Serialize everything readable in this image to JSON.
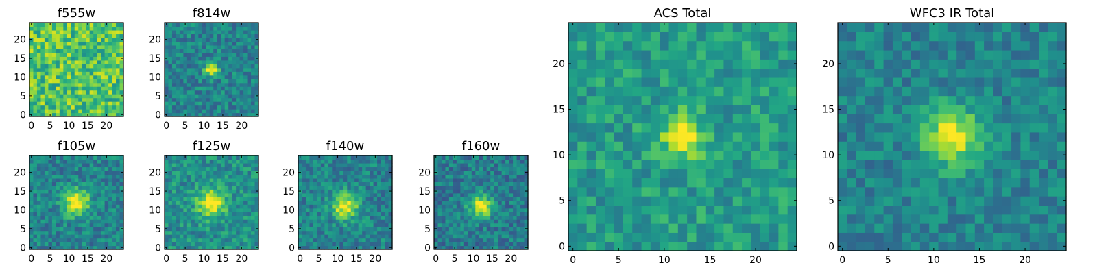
{
  "figure": {
    "colormap": "viridis"
  },
  "chart_data": [
    {
      "type": "heatmap",
      "id": "f555w",
      "title": "f555w",
      "grid_size": 25,
      "xlim": [
        -0.5,
        24.5
      ],
      "ylim": [
        -0.5,
        24.5
      ],
      "xticks": [
        0,
        5,
        10,
        15,
        20
      ],
      "yticks": [
        0,
        5,
        10,
        15,
        20
      ],
      "source_peak": [
        12,
        12
      ],
      "peak_level": 0.0,
      "source_sigma": 2.0,
      "background_level": 0.72,
      "noise": 0.22,
      "seed": 11
    },
    {
      "type": "heatmap",
      "id": "f814w",
      "title": "f814w",
      "grid_size": 25,
      "xlim": [
        -0.5,
        24.5
      ],
      "ylim": [
        -0.5,
        24.5
      ],
      "xticks": [
        0,
        5,
        10,
        15,
        20
      ],
      "yticks": [
        0,
        5,
        10,
        15,
        20
      ],
      "source_peak": [
        12,
        12
      ],
      "peak_level": 0.6,
      "source_sigma": 1.3,
      "background_level": 0.45,
      "noise": 0.16,
      "seed": 23
    },
    {
      "type": "heatmap",
      "id": "f105w",
      "title": "f105w",
      "grid_size": 25,
      "xlim": [
        -0.5,
        24.5
      ],
      "ylim": [
        -0.5,
        24.5
      ],
      "xticks": [
        0,
        5,
        10,
        15,
        20
      ],
      "yticks": [
        0,
        5,
        10,
        15,
        20
      ],
      "source_peak": [
        12,
        12
      ],
      "peak_level": 0.6,
      "source_sigma": 2.4,
      "background_level": 0.45,
      "noise": 0.16,
      "seed": 37
    },
    {
      "type": "heatmap",
      "id": "f125w",
      "title": "f125w",
      "grid_size": 25,
      "xlim": [
        -0.5,
        24.5
      ],
      "ylim": [
        -0.5,
        24.5
      ],
      "xticks": [
        0,
        5,
        10,
        15,
        20
      ],
      "yticks": [
        0,
        5,
        10,
        15,
        20
      ],
      "source_peak": [
        12,
        12
      ],
      "peak_level": 0.55,
      "source_sigma": 2.6,
      "background_level": 0.5,
      "noise": 0.16,
      "seed": 41
    },
    {
      "type": "heatmap",
      "id": "f140w",
      "title": "f140w",
      "grid_size": 25,
      "xlim": [
        -0.5,
        24.5
      ],
      "ylim": [
        -0.5,
        24.5
      ],
      "xticks": [
        0,
        5,
        10,
        15,
        20
      ],
      "yticks": [
        0,
        5,
        10,
        15,
        20
      ],
      "source_peak": [
        12,
        11
      ],
      "peak_level": 0.55,
      "source_sigma": 2.4,
      "background_level": 0.45,
      "noise": 0.16,
      "seed": 53
    },
    {
      "type": "heatmap",
      "id": "f160w",
      "title": "f160w",
      "grid_size": 25,
      "xlim": [
        -0.5,
        24.5
      ],
      "ylim": [
        -0.5,
        24.5
      ],
      "xticks": [
        0,
        5,
        10,
        15,
        20
      ],
      "yticks": [
        0,
        5,
        10,
        15,
        20
      ],
      "source_peak": [
        12,
        11
      ],
      "peak_level": 0.55,
      "source_sigma": 2.2,
      "background_level": 0.42,
      "noise": 0.16,
      "seed": 67
    },
    {
      "type": "heatmap",
      "id": "acs_total",
      "title": "ACS Total",
      "grid_size": 25,
      "xlim": [
        -0.5,
        24.5
      ],
      "ylim": [
        -0.5,
        24.5
      ],
      "xticks": [
        0,
        5,
        10,
        15,
        20
      ],
      "yticks": [
        0,
        5,
        10,
        15,
        20
      ],
      "source_peak": [
        12,
        12
      ],
      "peak_level": 0.5,
      "source_sigma": 1.6,
      "background_level": 0.55,
      "noise": 0.15,
      "seed": 79
    },
    {
      "type": "heatmap",
      "id": "wfc3_ir_total",
      "title": "WFC3 IR Total",
      "grid_size": 25,
      "xlim": [
        -0.5,
        24.5
      ],
      "ylim": [
        -0.5,
        24.5
      ],
      "xticks": [
        0,
        5,
        10,
        15,
        20
      ],
      "yticks": [
        0,
        5,
        10,
        15,
        20
      ],
      "source_peak": [
        12,
        12
      ],
      "peak_level": 0.55,
      "source_sigma": 2.2,
      "background_level": 0.45,
      "noise": 0.13,
      "seed": 97
    }
  ]
}
